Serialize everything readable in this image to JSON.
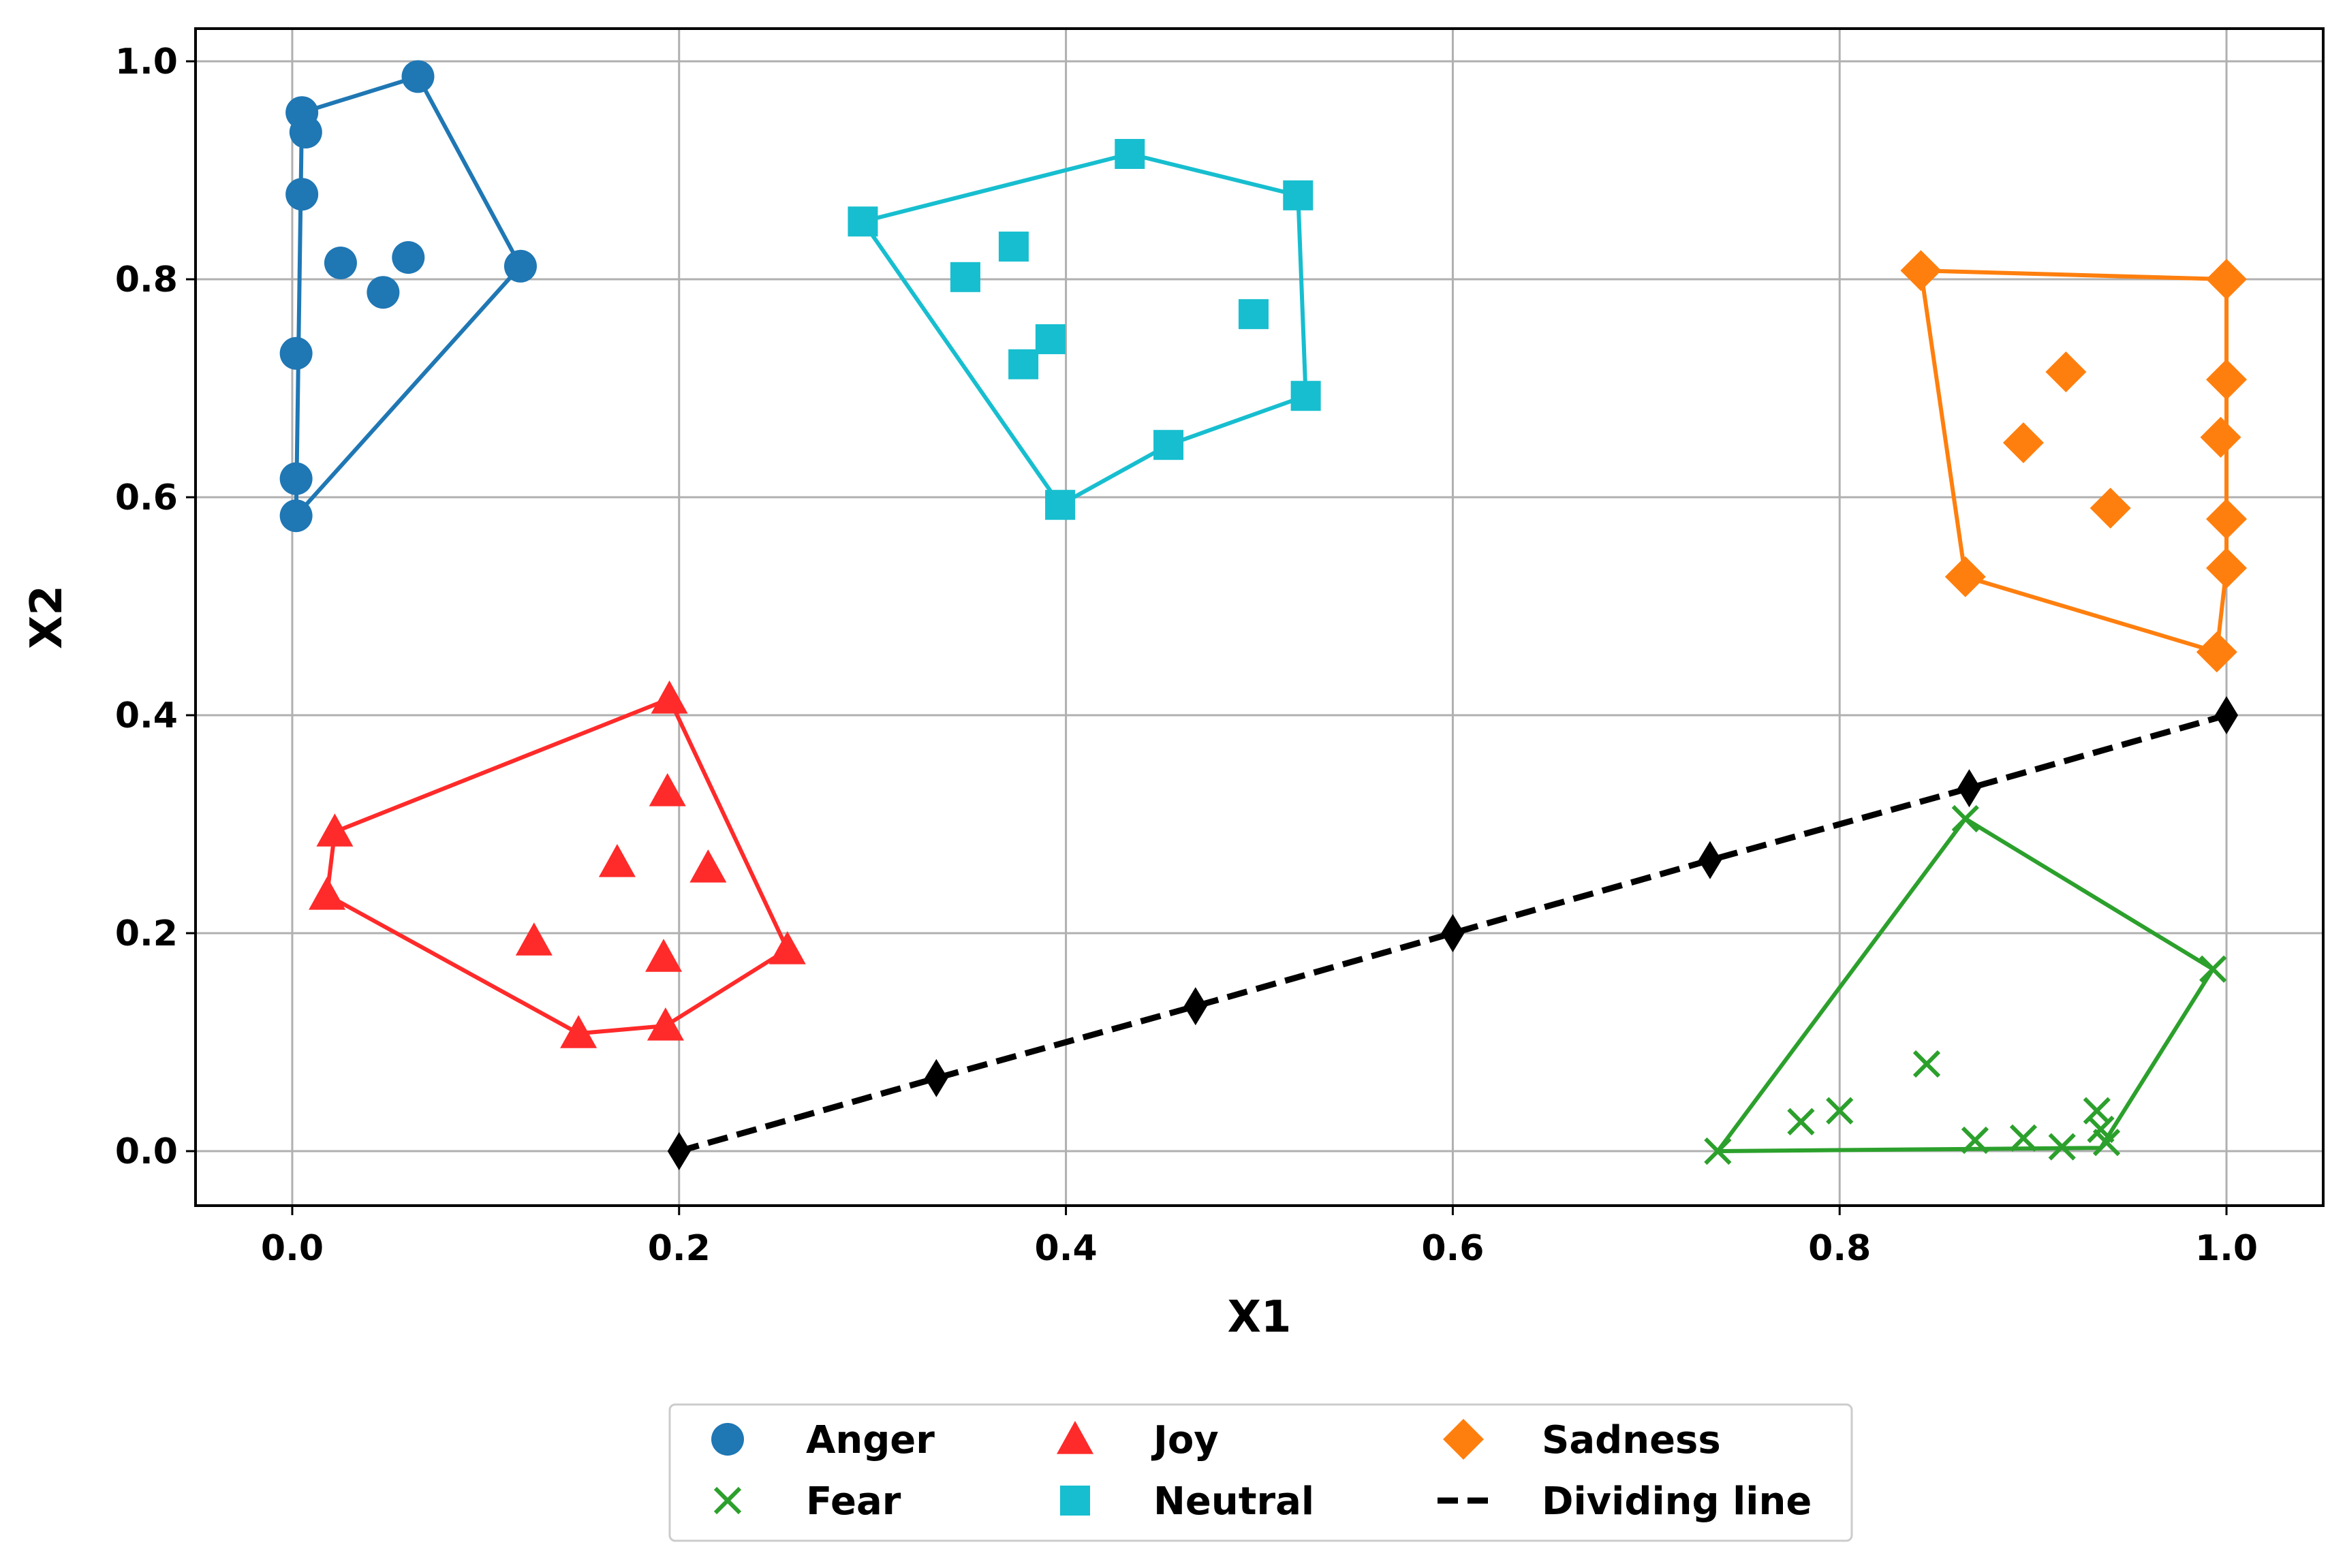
{
  "chart_data": {
    "type": "scatter",
    "title": "",
    "xlabel": "X1",
    "ylabel": "X2",
    "xlim": [
      -0.05,
      1.05
    ],
    "ylim": [
      -0.05,
      1.03
    ],
    "xticks": [
      0.0,
      0.2,
      0.4,
      0.6,
      0.8,
      1.0
    ],
    "yticks": [
      0.0,
      0.2,
      0.4,
      0.6,
      0.8,
      1.0
    ],
    "xtick_labels": [
      "0.0",
      "0.2",
      "0.4",
      "0.6",
      "0.8",
      "1.0"
    ],
    "ytick_labels": [
      "0.0",
      "0.2",
      "0.4",
      "0.6",
      "0.8",
      "1.0"
    ],
    "grid": true,
    "legend_position": "bottom-center-outside",
    "series": [
      {
        "name": "Anger",
        "marker": "circle",
        "color": "#1f77b4",
        "hull_color": "#1f77b4",
        "points": [
          [
            0.002,
            0.583
          ],
          [
            0.002,
            0.617
          ],
          [
            0.002,
            0.732
          ],
          [
            0.005,
            0.953
          ],
          [
            0.007,
            0.935
          ],
          [
            0.005,
            0.878
          ],
          [
            0.025,
            0.815
          ],
          [
            0.047,
            0.788
          ],
          [
            0.06,
            0.82
          ],
          [
            0.065,
            0.986
          ],
          [
            0.118,
            0.812
          ]
        ],
        "hull": [
          [
            0.002,
            0.583
          ],
          [
            0.005,
            0.953
          ],
          [
            0.065,
            0.986
          ],
          [
            0.118,
            0.812
          ]
        ]
      },
      {
        "name": "Fear",
        "marker": "x",
        "color": "#2ca02c",
        "hull_color": "#2ca02c",
        "points": [
          [
            0.737,
            0.0
          ],
          [
            0.78,
            0.027
          ],
          [
            0.8,
            0.037
          ],
          [
            0.845,
            0.08
          ],
          [
            0.865,
            0.305
          ],
          [
            0.87,
            0.01
          ],
          [
            0.895,
            0.012
          ],
          [
            0.915,
            0.004
          ],
          [
            0.933,
            0.037
          ],
          [
            0.935,
            0.02
          ],
          [
            0.938,
            0.008
          ],
          [
            0.993,
            0.167
          ]
        ],
        "hull": [
          [
            0.737,
            0.0
          ],
          [
            0.865,
            0.305
          ],
          [
            0.993,
            0.167
          ],
          [
            0.935,
            0.003
          ]
        ]
      },
      {
        "name": "Joy",
        "marker": "triangle",
        "color": "#ff2a2a",
        "hull_color": "#ff2a2a",
        "points": [
          [
            0.018,
            0.235
          ],
          [
            0.022,
            0.293
          ],
          [
            0.125,
            0.193
          ],
          [
            0.148,
            0.108
          ],
          [
            0.168,
            0.265
          ],
          [
            0.192,
            0.178
          ],
          [
            0.193,
            0.115
          ],
          [
            0.194,
            0.33
          ],
          [
            0.195,
            0.415
          ],
          [
            0.215,
            0.26
          ],
          [
            0.256,
            0.185
          ]
        ],
        "hull": [
          [
            0.018,
            0.235
          ],
          [
            0.022,
            0.293
          ],
          [
            0.195,
            0.415
          ],
          [
            0.256,
            0.185
          ],
          [
            0.193,
            0.115
          ],
          [
            0.148,
            0.108
          ]
        ]
      },
      {
        "name": "Neutral",
        "marker": "square",
        "color": "#17becf",
        "hull_color": "#17becf",
        "points": [
          [
            0.295,
            0.853
          ],
          [
            0.348,
            0.802
          ],
          [
            0.373,
            0.83
          ],
          [
            0.378,
            0.722
          ],
          [
            0.392,
            0.745
          ],
          [
            0.397,
            0.593
          ],
          [
            0.433,
            0.915
          ],
          [
            0.453,
            0.648
          ],
          [
            0.497,
            0.768
          ],
          [
            0.52,
            0.877
          ],
          [
            0.524,
            0.693
          ]
        ],
        "hull": [
          [
            0.295,
            0.853
          ],
          [
            0.433,
            0.915
          ],
          [
            0.52,
            0.877
          ],
          [
            0.524,
            0.693
          ],
          [
            0.453,
            0.648
          ],
          [
            0.397,
            0.593
          ]
        ]
      },
      {
        "name": "Sadness",
        "marker": "diamond",
        "color": "#ff7f0e",
        "hull_color": "#ff7f0e",
        "points": [
          [
            0.842,
            0.808
          ],
          [
            0.865,
            0.527
          ],
          [
            0.895,
            0.65
          ],
          [
            0.917,
            0.715
          ],
          [
            0.94,
            0.59
          ],
          [
            0.995,
            0.458
          ],
          [
            0.997,
            0.655
          ],
          [
            1.0,
            0.8
          ],
          [
            1.0,
            0.708
          ],
          [
            1.0,
            0.58
          ],
          [
            1.0,
            0.535
          ]
        ],
        "hull": [
          [
            0.842,
            0.808
          ],
          [
            1.0,
            0.8
          ],
          [
            1.0,
            0.535
          ],
          [
            0.995,
            0.458
          ],
          [
            0.865,
            0.527
          ]
        ]
      },
      {
        "name": "Dividing line",
        "marker": "thin_diamond",
        "color": "#000000",
        "line_style": "dashed",
        "points": [
          [
            0.2,
            0.0
          ],
          [
            0.333,
            0.067
          ],
          [
            0.467,
            0.133
          ],
          [
            0.6,
            0.2
          ],
          [
            0.733,
            0.267
          ],
          [
            0.867,
            0.333
          ],
          [
            1.0,
            0.4
          ]
        ]
      }
    ],
    "legend": [
      {
        "label": "Anger",
        "marker": "circle",
        "color": "#1f77b4"
      },
      {
        "label": "Fear",
        "marker": "x",
        "color": "#2ca02c"
      },
      {
        "label": "Joy",
        "marker": "triangle",
        "color": "#ff2a2a"
      },
      {
        "label": "Neutral",
        "marker": "square",
        "color": "#17becf"
      },
      {
        "label": "Sadness",
        "marker": "diamond",
        "color": "#ff7f0e"
      },
      {
        "label": "Dividing line",
        "marker": "dash",
        "color": "#000000"
      }
    ]
  }
}
